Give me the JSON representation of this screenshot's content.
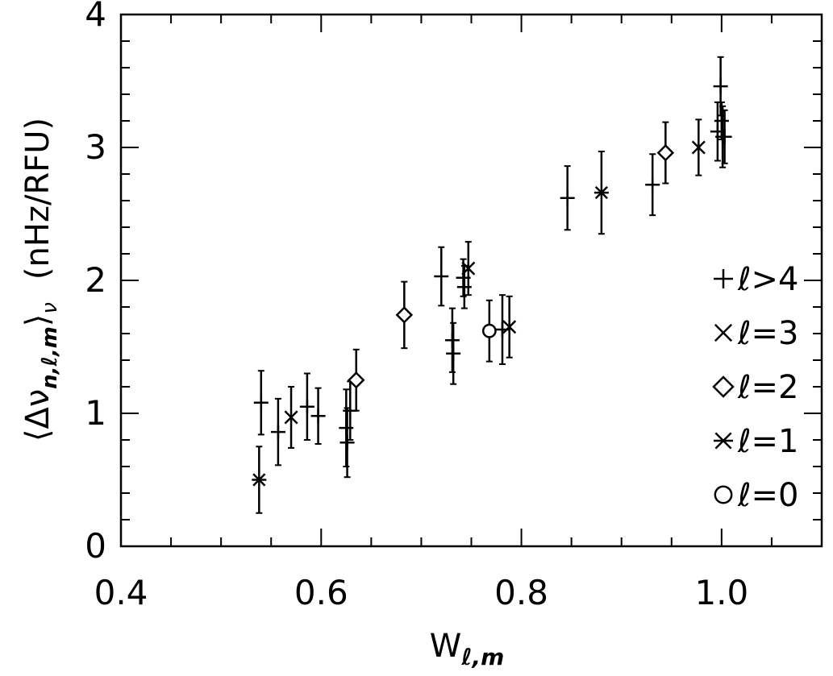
{
  "chart_data": {
    "type": "scatter",
    "title": "",
    "xlabel": {
      "main": "W",
      "sub": "ℓ,m"
    },
    "ylabel": {
      "expression": {
        "open": "⟨Δν",
        "sub": "n,ℓ,m",
        "close": "⟩",
        "sub2": "ν"
      },
      "units": "(nHz/RFU)"
    },
    "xlim": [
      0.4,
      1.1
    ],
    "ylim": [
      0,
      4
    ],
    "x_ticks": [
      "0.4",
      "0.6",
      "0.8",
      "1.0"
    ],
    "y_ticks": [
      "0",
      "1",
      "2",
      "3",
      "4"
    ],
    "grid": false,
    "legend_position": "right",
    "legend": [
      {
        "symbol": "plus",
        "label": "ℓ>4"
      },
      {
        "symbol": "cross",
        "label": "ℓ=3"
      },
      {
        "symbol": "diamond",
        "label": "ℓ=2"
      },
      {
        "symbol": "asterisk",
        "label": "ℓ=1"
      },
      {
        "symbol": "circle",
        "label": "ℓ=0"
      }
    ],
    "series": [
      {
        "symbol": "plus",
        "points": [
          {
            "x": 0.54,
            "y": 1.08,
            "err": 0.24
          },
          {
            "x": 0.557,
            "y": 0.86,
            "err": 0.25
          },
          {
            "x": 0.586,
            "y": 1.05,
            "err": 0.25
          },
          {
            "x": 0.597,
            "y": 0.98,
            "err": 0.21
          },
          {
            "x": 0.625,
            "y": 0.89,
            "err": 0.29
          },
          {
            "x": 0.626,
            "y": 0.78,
            "err": 0.26
          },
          {
            "x": 0.629,
            "y": 1.02,
            "err": 0.22
          },
          {
            "x": 0.72,
            "y": 2.03,
            "err": 0.22
          },
          {
            "x": 0.731,
            "y": 1.55,
            "err": 0.24
          },
          {
            "x": 0.732,
            "y": 1.45,
            "err": 0.23
          },
          {
            "x": 0.742,
            "y": 2.02,
            "err": 0.14
          },
          {
            "x": 0.743,
            "y": 1.95,
            "err": 0.16
          },
          {
            "x": 0.781,
            "y": 1.63,
            "err": 0.26
          },
          {
            "x": 0.846,
            "y": 2.62,
            "err": 0.24
          },
          {
            "x": 0.931,
            "y": 2.72,
            "err": 0.23
          },
          {
            "x": 0.996,
            "y": 3.12,
            "err": 0.22
          },
          {
            "x": 0.999,
            "y": 3.46,
            "err": 0.22
          },
          {
            "x": 1.0,
            "y": 3.2,
            "err": 0.14
          },
          {
            "x": 1.001,
            "y": 3.08,
            "err": 0.23
          },
          {
            "x": 1.003,
            "y": 3.08,
            "err": 0.2
          }
        ]
      },
      {
        "symbol": "cross",
        "points": [
          {
            "x": 0.57,
            "y": 0.97,
            "err": 0.23
          },
          {
            "x": 0.747,
            "y": 2.09,
            "err": 0.2
          },
          {
            "x": 0.788,
            "y": 1.65,
            "err": 0.23
          },
          {
            "x": 0.977,
            "y": 3.0,
            "err": 0.21
          }
        ]
      },
      {
        "symbol": "diamond",
        "points": [
          {
            "x": 0.635,
            "y": 1.25,
            "err": 0.23
          },
          {
            "x": 0.683,
            "y": 1.74,
            "err": 0.25
          },
          {
            "x": 0.944,
            "y": 2.96,
            "err": 0.23
          }
        ]
      },
      {
        "symbol": "asterisk",
        "points": [
          {
            "x": 0.538,
            "y": 0.5,
            "err": 0.25
          },
          {
            "x": 0.88,
            "y": 2.66,
            "err": 0.31
          }
        ]
      },
      {
        "symbol": "circle",
        "points": [
          {
            "x": 0.768,
            "y": 1.62,
            "err": 0.23
          }
        ]
      }
    ]
  }
}
